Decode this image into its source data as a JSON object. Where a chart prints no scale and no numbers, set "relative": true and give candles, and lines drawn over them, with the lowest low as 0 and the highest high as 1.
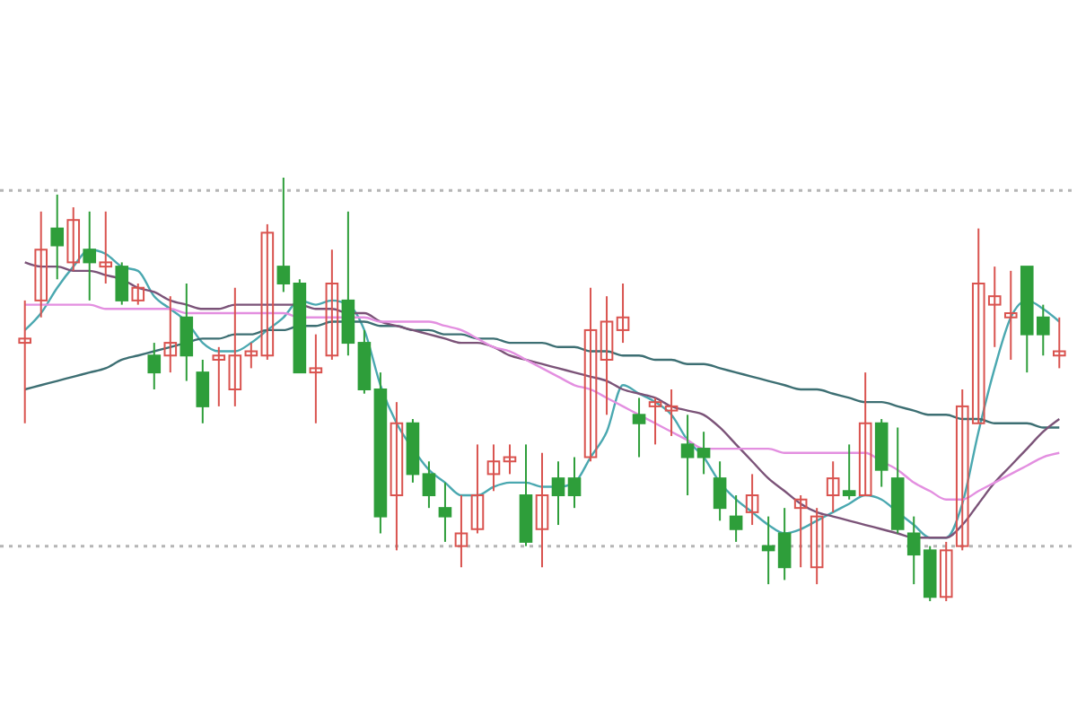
{
  "chart_data": {
    "type": "candlestick",
    "relative": true,
    "categories": [
      null,
      null,
      null,
      null,
      null,
      null,
      null,
      null,
      null,
      null,
      null,
      null,
      null,
      null,
      null,
      null,
      null,
      null,
      null,
      null,
      null,
      null,
      null,
      null,
      null,
      null,
      null,
      null,
      null,
      null,
      null,
      null,
      null,
      null,
      null,
      null,
      null,
      null,
      null,
      null,
      null,
      null,
      null,
      null,
      null,
      null,
      null,
      null,
      null,
      null,
      null,
      null,
      null,
      null,
      null,
      null,
      null,
      null,
      null,
      null,
      null,
      null,
      null,
      null,
      null
    ],
    "ohlc": [
      [
        0.61,
        0.71,
        0.42,
        0.62
      ],
      [
        0.71,
        0.92,
        0.67,
        0.83
      ],
      [
        0.88,
        0.96,
        0.76,
        0.84
      ],
      [
        0.8,
        0.93,
        0.78,
        0.9
      ],
      [
        0.83,
        0.92,
        0.71,
        0.8
      ],
      [
        0.79,
        0.92,
        0.75,
        0.8
      ],
      [
        0.79,
        0.8,
        0.7,
        0.71
      ],
      [
        0.71,
        0.75,
        0.7,
        0.74
      ],
      [
        0.58,
        0.61,
        0.5,
        0.54
      ],
      [
        0.58,
        0.72,
        0.54,
        0.61
      ],
      [
        0.67,
        0.75,
        0.52,
        0.58
      ],
      [
        0.54,
        0.57,
        0.42,
        0.46
      ],
      [
        0.57,
        0.6,
        0.46,
        0.58
      ],
      [
        0.5,
        0.74,
        0.46,
        0.58
      ],
      [
        0.58,
        0.61,
        0.55,
        0.59
      ],
      [
        0.58,
        0.89,
        0.57,
        0.87
      ],
      [
        0.79,
        1,
        0.73,
        0.75
      ],
      [
        0.75,
        0.76,
        0.54,
        0.54
      ],
      [
        0.54,
        0.63,
        0.42,
        0.55
      ],
      [
        0.58,
        0.83,
        0.57,
        0.75
      ],
      [
        0.71,
        0.92,
        0.58,
        0.61
      ],
      [
        0.61,
        0.64,
        0.49,
        0.5
      ],
      [
        0.5,
        0.54,
        0.16,
        0.2
      ],
      [
        0.25,
        0.47,
        0.12,
        0.42
      ],
      [
        0.42,
        0.43,
        0.28,
        0.3
      ],
      [
        0.3,
        0.33,
        0.22,
        0.25
      ],
      [
        0.22,
        0.28,
        0.14,
        0.2
      ],
      [
        0.13,
        0.25,
        0.08,
        0.16
      ],
      [
        0.17,
        0.37,
        0.16,
        0.25
      ],
      [
        0.3,
        0.37,
        0.26,
        0.33
      ],
      [
        0.33,
        0.37,
        0.3,
        0.34
      ],
      [
        0.25,
        0.37,
        0.13,
        0.14
      ],
      [
        0.17,
        0.35,
        0.08,
        0.25
      ],
      [
        0.29,
        0.33,
        0.18,
        0.25
      ],
      [
        0.29,
        0.34,
        0.22,
        0.25
      ],
      [
        0.34,
        0.74,
        0.33,
        0.64
      ],
      [
        0.57,
        0.72,
        0.44,
        0.66
      ],
      [
        0.64,
        0.75,
        0.61,
        0.67
      ],
      [
        0.44,
        0.48,
        0.34,
        0.42
      ],
      [
        0.46,
        0.48,
        0.37,
        0.47
      ],
      [
        0.45,
        0.5,
        0.39,
        0.46
      ],
      [
        0.37,
        0.44,
        0.25,
        0.34
      ],
      [
        0.36,
        0.4,
        0.3,
        0.34
      ],
      [
        0.29,
        0.33,
        0.19,
        0.22
      ],
      [
        0.2,
        0.25,
        0.14,
        0.17
      ],
      [
        0.21,
        0.3,
        0.18,
        0.25
      ],
      [
        0.13,
        0.2,
        0.04,
        0.12
      ],
      [
        0.16,
        0.22,
        0.05,
        0.08
      ],
      [
        0.22,
        0.25,
        0.08,
        0.24
      ],
      [
        0.08,
        0.22,
        0.04,
        0.2
      ],
      [
        0.25,
        0.33,
        0.21,
        0.29
      ],
      [
        0.26,
        0.37,
        0.24,
        0.25
      ],
      [
        0.25,
        0.54,
        0.25,
        0.42
      ],
      [
        0.42,
        0.43,
        0.27,
        0.31
      ],
      [
        0.29,
        0.41,
        0.16,
        0.17
      ],
      [
        0.16,
        0.2,
        0.04,
        0.11
      ],
      [
        0.12,
        0.13,
        0,
        0.01
      ],
      [
        0.01,
        0.14,
        0,
        0.12
      ],
      [
        0.13,
        0.5,
        0.12,
        0.46
      ],
      [
        0.42,
        0.88,
        0.42,
        0.75
      ],
      [
        0.7,
        0.79,
        0.6,
        0.72
      ],
      [
        0.67,
        0.78,
        0.57,
        0.68
      ],
      [
        0.79,
        0.79,
        0.54,
        0.63
      ],
      [
        0.67,
        0.7,
        0.58,
        0.63
      ],
      [
        0.58,
        0.67,
        0.55,
        0.59
      ]
    ],
    "colors": [
      "#d9534f",
      "#d9534f",
      "#2e9e3a",
      "#d9534f",
      "#2e9e3a",
      "#d9534f",
      "#2e9e3a",
      "#d9534f",
      "#2e9e3a",
      "#d9534f",
      "#2e9e3a",
      "#2e9e3a",
      "#d9534f",
      "#d9534f",
      "#d9534f",
      "#d9534f",
      "#2e9e3a",
      "#2e9e3a",
      "#d9534f",
      "#d9534f",
      "#2e9e3a",
      "#2e9e3a",
      "#2e9e3a",
      "#d9534f",
      "#2e9e3a",
      "#2e9e3a",
      "#2e9e3a",
      "#d9534f",
      "#d9534f",
      "#d9534f",
      "#d9534f",
      "#2e9e3a",
      "#d9534f",
      "#2e9e3a",
      "#2e9e3a",
      "#d9534f",
      "#d9534f",
      "#d9534f",
      "#2e9e3a",
      "#d9534f",
      "#d9534f",
      "#2e9e3a",
      "#2e9e3a",
      "#2e9e3a",
      "#2e9e3a",
      "#d9534f",
      "#2e9e3a",
      "#2e9e3a",
      "#d9534f",
      "#d9534f",
      "#d9534f",
      "#2e9e3a",
      "#d9534f",
      "#2e9e3a",
      "#2e9e3a",
      "#2e9e3a",
      "#2e9e3a",
      "#d9534f",
      "#d9534f",
      "#d9534f",
      "#d9534f",
      "#d9534f",
      "#2e9e3a",
      "#2e9e3a",
      "#d9534f"
    ],
    "series": [
      {
        "type": "line",
        "color": "#4aa8b0",
        "values": [
          0.64,
          0.68,
          0.74,
          0.79,
          0.83,
          0.82,
          0.79,
          0.78,
          0.72,
          0.69,
          0.66,
          0.61,
          0.59,
          0.59,
          0.61,
          0.64,
          0.67,
          0.71,
          0.7,
          0.71,
          0.7,
          0.64,
          0.51,
          0.42,
          0.36,
          0.31,
          0.28,
          0.25,
          0.25,
          0.27,
          0.28,
          0.28,
          0.27,
          0.27,
          0.28,
          0.34,
          0.4,
          0.51,
          0.49,
          0.47,
          0.44,
          0.38,
          0.34,
          0.28,
          0.24,
          0.21,
          0.18,
          0.16,
          0.17,
          0.19,
          0.21,
          0.23,
          0.25,
          0.24,
          0.21,
          0.18,
          0.15,
          0.15,
          0.23,
          0.4,
          0.55,
          0.67,
          0.71,
          0.69,
          0.66
        ]
      },
      {
        "type": "line",
        "color": "#3d6f73",
        "values": [
          0.5,
          0.51,
          0.52,
          0.53,
          0.54,
          0.55,
          0.57,
          0.58,
          0.59,
          0.6,
          0.61,
          0.62,
          0.62,
          0.63,
          0.63,
          0.64,
          0.64,
          0.65,
          0.65,
          0.66,
          0.66,
          0.66,
          0.65,
          0.65,
          0.64,
          0.64,
          0.63,
          0.63,
          0.62,
          0.62,
          0.61,
          0.61,
          0.61,
          0.6,
          0.6,
          0.59,
          0.59,
          0.58,
          0.58,
          0.57,
          0.57,
          0.56,
          0.56,
          0.55,
          0.54,
          0.53,
          0.52,
          0.51,
          0.5,
          0.5,
          0.49,
          0.48,
          0.47,
          0.47,
          0.46,
          0.45,
          0.44,
          0.44,
          0.43,
          0.43,
          0.42,
          0.42,
          0.42,
          0.41,
          0.41
        ]
      },
      {
        "type": "line",
        "color": "#7b5378",
        "values": [
          0.8,
          0.79,
          0.79,
          0.78,
          0.78,
          0.77,
          0.76,
          0.74,
          0.73,
          0.71,
          0.7,
          0.69,
          0.69,
          0.7,
          0.7,
          0.7,
          0.7,
          0.7,
          0.69,
          0.69,
          0.68,
          0.68,
          0.66,
          0.65,
          0.64,
          0.63,
          0.62,
          0.61,
          0.61,
          0.6,
          0.58,
          0.57,
          0.56,
          0.55,
          0.54,
          0.53,
          0.52,
          0.5,
          0.49,
          0.48,
          0.46,
          0.45,
          0.44,
          0.41,
          0.37,
          0.33,
          0.29,
          0.26,
          0.23,
          0.21,
          0.2,
          0.19,
          0.18,
          0.17,
          0.16,
          0.15,
          0.15,
          0.15,
          0.18,
          0.23,
          0.28,
          0.32,
          0.36,
          0.4,
          0.43
        ]
      },
      {
        "type": "line",
        "color": "#e38fe0",
        "values": [
          0.7,
          0.7,
          0.7,
          0.7,
          0.7,
          0.69,
          0.69,
          0.69,
          0.69,
          0.69,
          0.68,
          0.68,
          0.68,
          0.68,
          0.68,
          0.68,
          0.68,
          0.67,
          0.67,
          0.67,
          0.67,
          0.67,
          0.66,
          0.66,
          0.66,
          0.66,
          0.65,
          0.64,
          0.62,
          0.6,
          0.59,
          0.57,
          0.55,
          0.53,
          0.51,
          0.5,
          0.48,
          0.46,
          0.44,
          0.42,
          0.4,
          0.38,
          0.36,
          0.36,
          0.36,
          0.36,
          0.36,
          0.35,
          0.35,
          0.35,
          0.35,
          0.35,
          0.35,
          0.33,
          0.31,
          0.28,
          0.26,
          0.24,
          0.24,
          0.26,
          0.28,
          0.3,
          0.32,
          0.34,
          0.35
        ]
      }
    ],
    "ref_lines": [
      {
        "axis": "y",
        "value": 0.97,
        "color": "#b5b5b5",
        "line_style": "dotted"
      },
      {
        "axis": "y",
        "value": 0.13,
        "color": "#b5b5b5",
        "line_style": "dotted"
      }
    ]
  }
}
